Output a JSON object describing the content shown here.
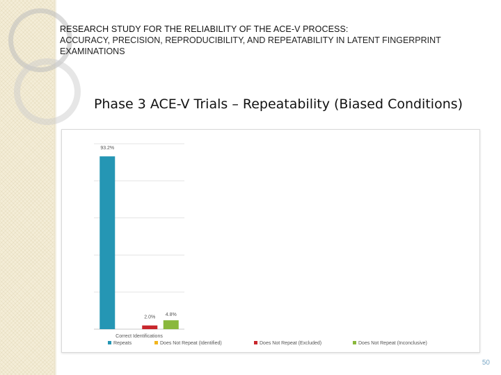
{
  "slide": {
    "header_title": "RESEARCH STUDY FOR THE RELIABILITY OF THE ACE-V PROCESS:",
    "header_subtitle": "ACCURACY, PRECISION, REPRODUCIBILITY, AND REPEATABILITY IN LATENT FINGERPRINT EXAMINATIONS",
    "title": "Phase 3 ACE-V Trials – Repeatability (Biased Conditions)",
    "page_number": "50"
  },
  "chart_data": {
    "type": "bar",
    "categories": [
      "Correct Identifications"
    ],
    "series": [
      {
        "name": "Repeats",
        "values": [
          93.2
        ],
        "labels": [
          "93.2%"
        ],
        "color": "#2596b4"
      },
      {
        "name": "Does Not Repeat (Identified)",
        "values": [
          0
        ],
        "labels": [
          ""
        ],
        "color": "#f2b51d"
      },
      {
        "name": "Does Not Repeat (Excluded)",
        "values": [
          2.0
        ],
        "labels": [
          "2.0%"
        ],
        "color": "#c8262c"
      },
      {
        "name": "Does Not Repeat (Inconclusive)",
        "values": [
          4.8
        ],
        "labels": [
          "4.8%"
        ],
        "color": "#8ab83c"
      }
    ],
    "ylim": [
      0,
      100
    ],
    "grid": true,
    "legend_position": "bottom"
  }
}
